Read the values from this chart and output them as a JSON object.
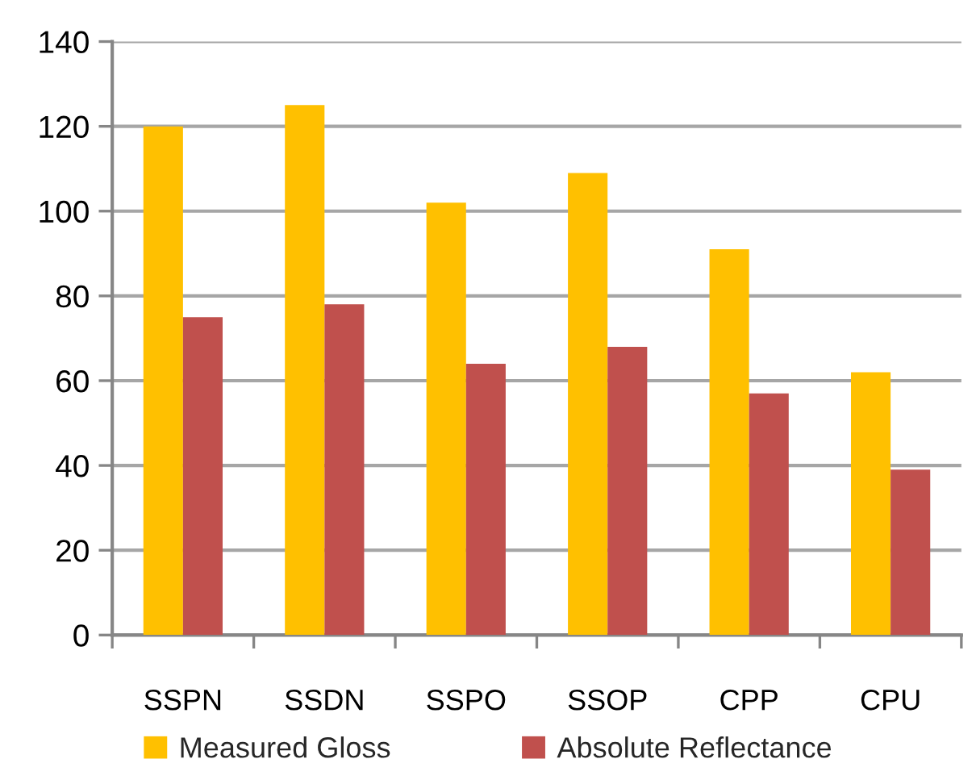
{
  "chart_data": {
    "type": "bar",
    "categories": [
      "SSPN",
      "SSDN",
      "SSPO",
      "SSOP",
      "CPP",
      "CPU"
    ],
    "series": [
      {
        "name": "Measured Gloss",
        "color": "#ffc000",
        "values": [
          120,
          125,
          102,
          109,
          91,
          62
        ]
      },
      {
        "name": "Absolute Reflectance",
        "color": "#c0504d",
        "values": [
          75,
          78,
          64,
          68,
          57,
          39
        ]
      }
    ],
    "ylim": [
      0,
      140
    ],
    "yticks": [
      0,
      20,
      40,
      60,
      80,
      100,
      120,
      140
    ],
    "grid": "y",
    "legend": "bottom"
  }
}
